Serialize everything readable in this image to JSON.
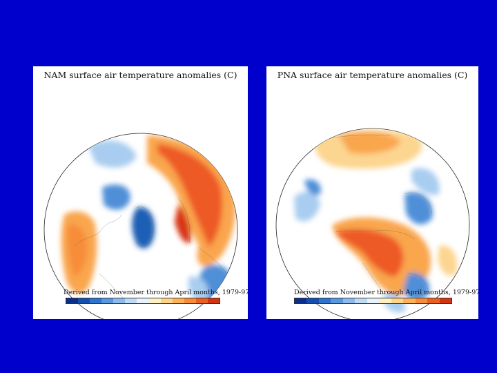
{
  "panels": [
    {
      "title": "NAM surface air temperature anomalies (C)",
      "caption": "Derived from November through April months, 1979-97"
    },
    {
      "title": "PNA surface air temperature anomalies (C)",
      "caption": "Derived from November through April months, 1979-97"
    }
  ],
  "colorbar_colors": [
    "#0a2e8c",
    "#1550b0",
    "#2f74cc",
    "#5a98de",
    "#8dbbec",
    "#bfdaf5",
    "#e8f3fb",
    "#fdf1c4",
    "#fdd488",
    "#fcb25a",
    "#f78c3a",
    "#ea6020",
    "#d23512"
  ],
  "colors": {
    "background": "#0000cc",
    "cold_strong": "#1f5fb4",
    "cold_mid": "#4f8fd8",
    "cold_light": "#a9cdf0",
    "warm_light": "#fcd590",
    "warm_mid": "#f9a64e",
    "warm_strong": "#ee5a25",
    "warm_max": "#d83512"
  }
}
